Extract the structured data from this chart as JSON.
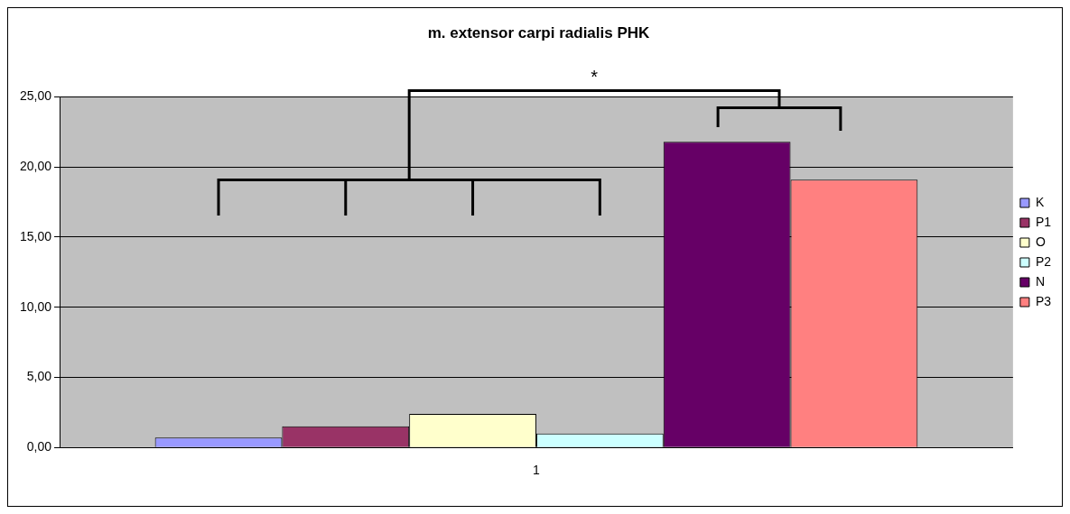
{
  "chart_data": {
    "type": "bar",
    "title": "m. extensor carpi radialis PHK",
    "categories": [
      "1"
    ],
    "series": [
      {
        "name": "K",
        "color": "#9999ff",
        "values": [
          0.7
        ]
      },
      {
        "name": "P1",
        "color": "#993366",
        "values": [
          1.5
        ]
      },
      {
        "name": "O",
        "color": "#ffffcc",
        "values": [
          2.4
        ]
      },
      {
        "name": "P2",
        "color": "#ccffff",
        "values": [
          1.0
        ]
      },
      {
        "name": "N",
        "color": "#660066",
        "values": [
          21.8
        ]
      },
      {
        "name": "P3",
        "color": "#ff8080",
        "values": [
          19.1
        ]
      }
    ],
    "ylim": [
      0,
      25
    ],
    "yticks": [
      {
        "value": 0,
        "label": "0,00"
      },
      {
        "value": 5,
        "label": "5,00"
      },
      {
        "value": 10,
        "label": "10,00"
      },
      {
        "value": 15,
        "label": "15,00"
      },
      {
        "value": 20,
        "label": "20,00"
      },
      {
        "value": 25,
        "label": "25,00"
      }
    ],
    "grid": "y",
    "legend": "right",
    "annotations": [
      "*"
    ]
  }
}
